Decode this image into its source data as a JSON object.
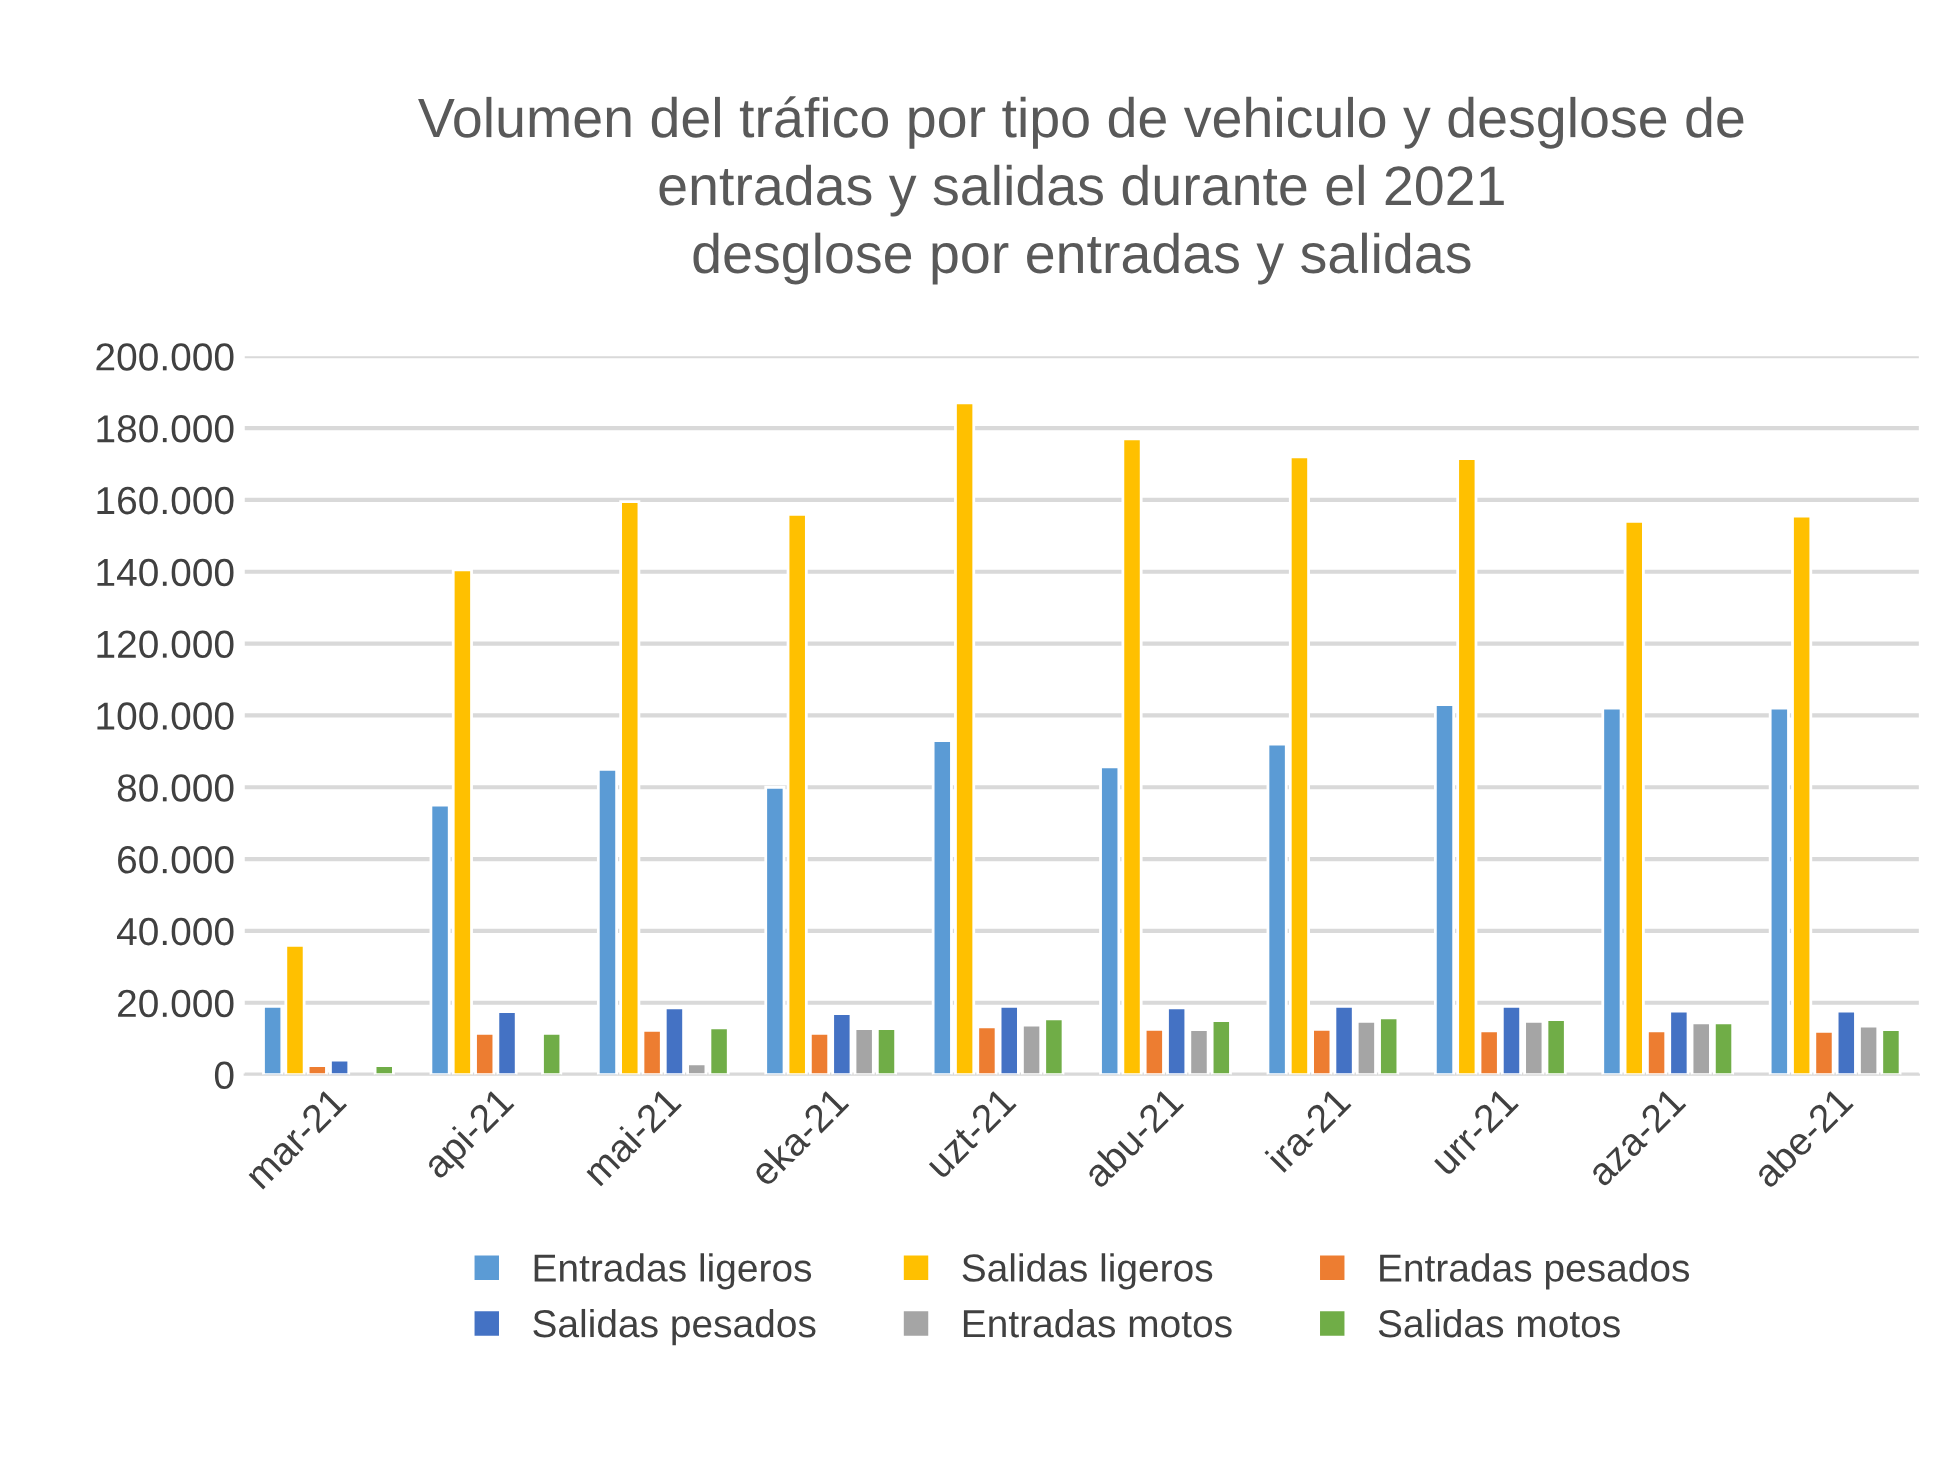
{
  "chart_data": {
    "type": "bar",
    "title": "Volumen del tráfico por tipo de vehiculo y desglose de\nentradas y salidas durante el 2021\ndesglose por entradas y salidas",
    "categories": [
      "mar-21",
      "api-21",
      "mai-21",
      "eka-21",
      "uzt-21",
      "abu-21",
      "ira-21",
      "urr-21",
      "aza-21",
      "abe-21"
    ],
    "series": [
      {
        "name": "Entradas ligeros",
        "color": "#5b9bd5",
        "values": [
          19000,
          75000,
          85000,
          80000,
          93000,
          85700,
          92000,
          103000,
          102000,
          102000
        ]
      },
      {
        "name": "Salidas ligeros",
        "color": "#ffc000",
        "values": [
          36000,
          140500,
          159500,
          156000,
          187000,
          177000,
          172000,
          171500,
          154000,
          155500
        ]
      },
      {
        "name": "Entradas pesados",
        "color": "#ed7d31",
        "values": [
          2500,
          11500,
          12300,
          11500,
          13300,
          12600,
          12600,
          12200,
          12200,
          12000
        ]
      },
      {
        "name": "Salidas pesados",
        "color": "#4472c4",
        "values": [
          4000,
          17500,
          18600,
          17000,
          19000,
          18600,
          19000,
          19000,
          17700,
          17700
        ]
      },
      {
        "name": "Entradas motos",
        "color": "#a5a5a5",
        "values": [
          null,
          null,
          3000,
          12800,
          13800,
          12500,
          14800,
          14800,
          14400,
          13500
        ]
      },
      {
        "name": "Salidas motos",
        "color": "#70ad47",
        "values": [
          2500,
          11500,
          13000,
          12800,
          15500,
          15000,
          15800,
          15300,
          14400,
          12500
        ]
      }
    ],
    "ylim": [
      0,
      200000
    ],
    "yticks": [
      {
        "value": 0,
        "label": "0"
      },
      {
        "value": 20000,
        "label": "20.000"
      },
      {
        "value": 40000,
        "label": "40.000"
      },
      {
        "value": 60000,
        "label": "60.000"
      },
      {
        "value": 80000,
        "label": "80.000"
      },
      {
        "value": 100000,
        "label": "100.000"
      },
      {
        "value": 120000,
        "label": "120.000"
      },
      {
        "value": 140000,
        "label": "140.000"
      },
      {
        "value": 160000,
        "label": "160.000"
      },
      {
        "value": 180000,
        "label": "180.000"
      },
      {
        "value": 200000,
        "label": "200.000"
      }
    ],
    "grid": "y",
    "legend": "bottom"
  }
}
